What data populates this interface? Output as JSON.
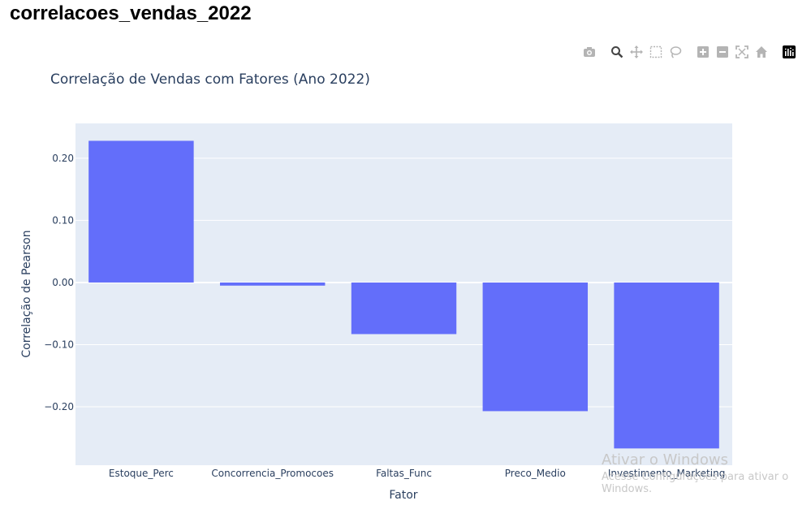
{
  "page": {
    "heading": "correlacoes_vendas_2022"
  },
  "modebar": {
    "icons": [
      "camera-icon",
      "zoom-icon",
      "pan-icon",
      "box-select-icon",
      "lasso-select-icon",
      "zoom-in-icon",
      "zoom-out-icon",
      "autoscale-icon",
      "reset-axes-icon",
      "plotly-logo-icon"
    ]
  },
  "colors": {
    "bar": "#636efa",
    "plot_bg": "#e5ecf6",
    "grid": "#ffffff",
    "title": "#2a3f5f",
    "tick": "#2a3f5f",
    "modebar_icon": "#b4b4b4"
  },
  "chart_data": {
    "type": "bar",
    "title": "Correlação de Vendas com Fatores (Ano 2022)",
    "xlabel": "Fator",
    "ylabel": "Correlação de Pearson",
    "categories": [
      "Estoque_Perc",
      "Concorrencia_Promocoes",
      "Faltas_Func",
      "Preco_Medio",
      "Investimento_Marketing"
    ],
    "values": [
      0.228,
      -0.005,
      -0.083,
      -0.207,
      -0.267
    ],
    "ylim": [
      -0.294,
      0.256
    ],
    "yticks": [
      0.2,
      0.1,
      0.0,
      -0.1,
      -0.2
    ],
    "ytick_labels": [
      "0.20",
      "0.10",
      "0.00",
      "−0.10",
      "−0.20"
    ],
    "grid": true
  },
  "watermark": {
    "title": "Ativar o Windows",
    "subtitle": "Acesse Configurações para ativar o Windows."
  }
}
